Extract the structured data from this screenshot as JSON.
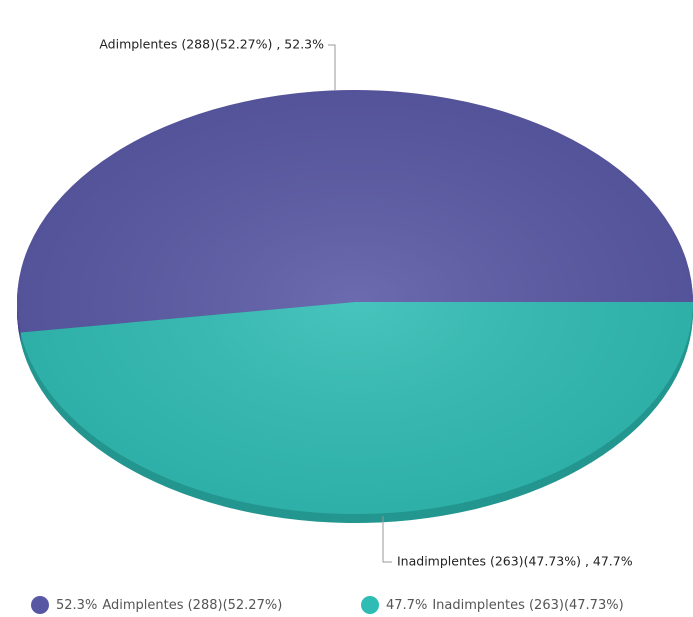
{
  "chart_data": {
    "type": "pie",
    "categories": [
      "Adimplentes (288)(52.27%)",
      "Inadimplentes (263)(47.73%)"
    ],
    "values": [
      52.3,
      47.7
    ],
    "value_labels": [
      "52.3%",
      "47.7%"
    ],
    "data_labels": [
      "Adimplentes (288)(52.27%) , 52.3%",
      "Inadimplentes (263)(47.73%) , 47.7%"
    ],
    "colors": [
      "#5857a4",
      "#2ebcb4"
    ],
    "edge_colors": [
      "#454488",
      "#23968f"
    ]
  }
}
